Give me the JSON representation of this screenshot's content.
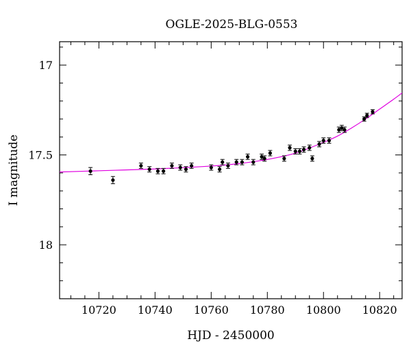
{
  "chart_data": {
    "type": "scatter",
    "title": "OGLE-2025-BLG-0553",
    "xlabel": "HJD - 2450000",
    "ylabel": "I magnitude",
    "xlim": [
      10706,
      10828
    ],
    "ylim": [
      18.3,
      16.87
    ],
    "y_inverted": true,
    "grid": false,
    "x_major_ticks": [
      10720,
      10740,
      10760,
      10780,
      10800,
      10820
    ],
    "x_tick_labels": [
      "10720",
      "10740",
      "10760",
      "10780",
      "10800",
      "10820"
    ],
    "x_minor_step": 5,
    "y_major_ticks": [
      17,
      17.5,
      18
    ],
    "y_tick_labels": [
      "17",
      "17.5",
      "18"
    ],
    "y_minor_step": 0.1,
    "colors": {
      "points": "#000000",
      "model": "#e000e0"
    },
    "series": [
      {
        "type": "scatter",
        "x": [
          10717,
          10725,
          10735,
          10738,
          10741,
          10743,
          10746,
          10749,
          10751,
          10753,
          10760,
          10763,
          10764,
          10766,
          10769,
          10771,
          10773,
          10775,
          10778,
          10779,
          10781,
          10786,
          10788,
          10790,
          10791.5,
          10793,
          10795,
          10796,
          10798.5,
          10800,
          10802,
          10805.5,
          10806.5,
          10807.5,
          10814.5,
          10815.5,
          10817.5
        ],
        "y": [
          17.59,
          17.64,
          17.56,
          17.58,
          17.59,
          17.59,
          17.56,
          17.57,
          17.58,
          17.56,
          17.57,
          17.58,
          17.54,
          17.56,
          17.54,
          17.54,
          17.51,
          17.54,
          17.51,
          17.52,
          17.49,
          17.52,
          17.46,
          17.48,
          17.48,
          17.47,
          17.46,
          17.52,
          17.44,
          17.42,
          17.42,
          17.36,
          17.35,
          17.36,
          17.3,
          17.28,
          17.26
        ],
        "yerr": [
          0.02,
          0.02,
          0.015,
          0.015,
          0.015,
          0.015,
          0.015,
          0.015,
          0.015,
          0.015,
          0.015,
          0.015,
          0.015,
          0.015,
          0.015,
          0.015,
          0.015,
          0.015,
          0.015,
          0.015,
          0.015,
          0.015,
          0.015,
          0.015,
          0.015,
          0.015,
          0.015,
          0.015,
          0.015,
          0.015,
          0.015,
          0.015,
          0.015,
          0.015,
          0.012,
          0.012,
          0.012
        ]
      },
      {
        "type": "line",
        "x": [
          10706,
          10720,
          10740,
          10760,
          10770,
          10780,
          10790,
          10800,
          10805,
          10810,
          10815,
          10820,
          10825,
          10828
        ],
        "y": [
          17.595,
          17.588,
          17.578,
          17.562,
          17.548,
          17.525,
          17.49,
          17.43,
          17.395,
          17.35,
          17.3,
          17.245,
          17.19,
          17.155
        ]
      }
    ]
  }
}
